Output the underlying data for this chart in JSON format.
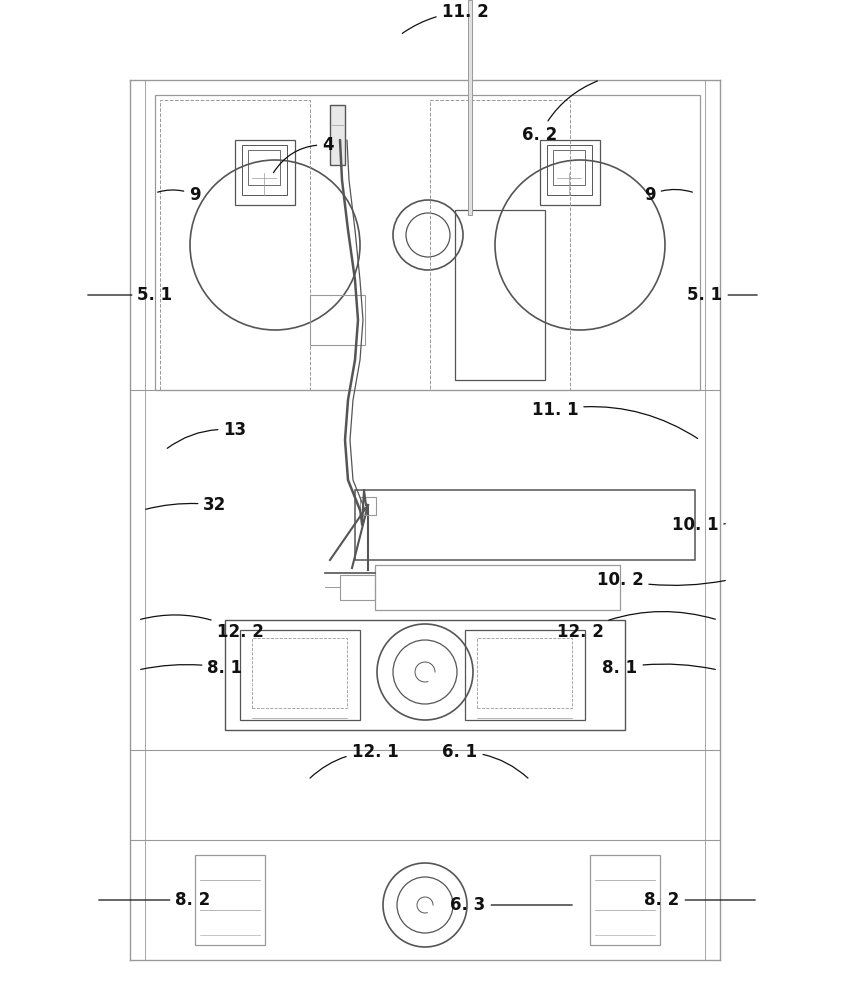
{
  "bg_color": "#ffffff",
  "lc": "#999999",
  "dc": "#555555",
  "tc": "#111111",
  "fig_width": 8.54,
  "fig_height": 10.0,
  "dpi": 100
}
